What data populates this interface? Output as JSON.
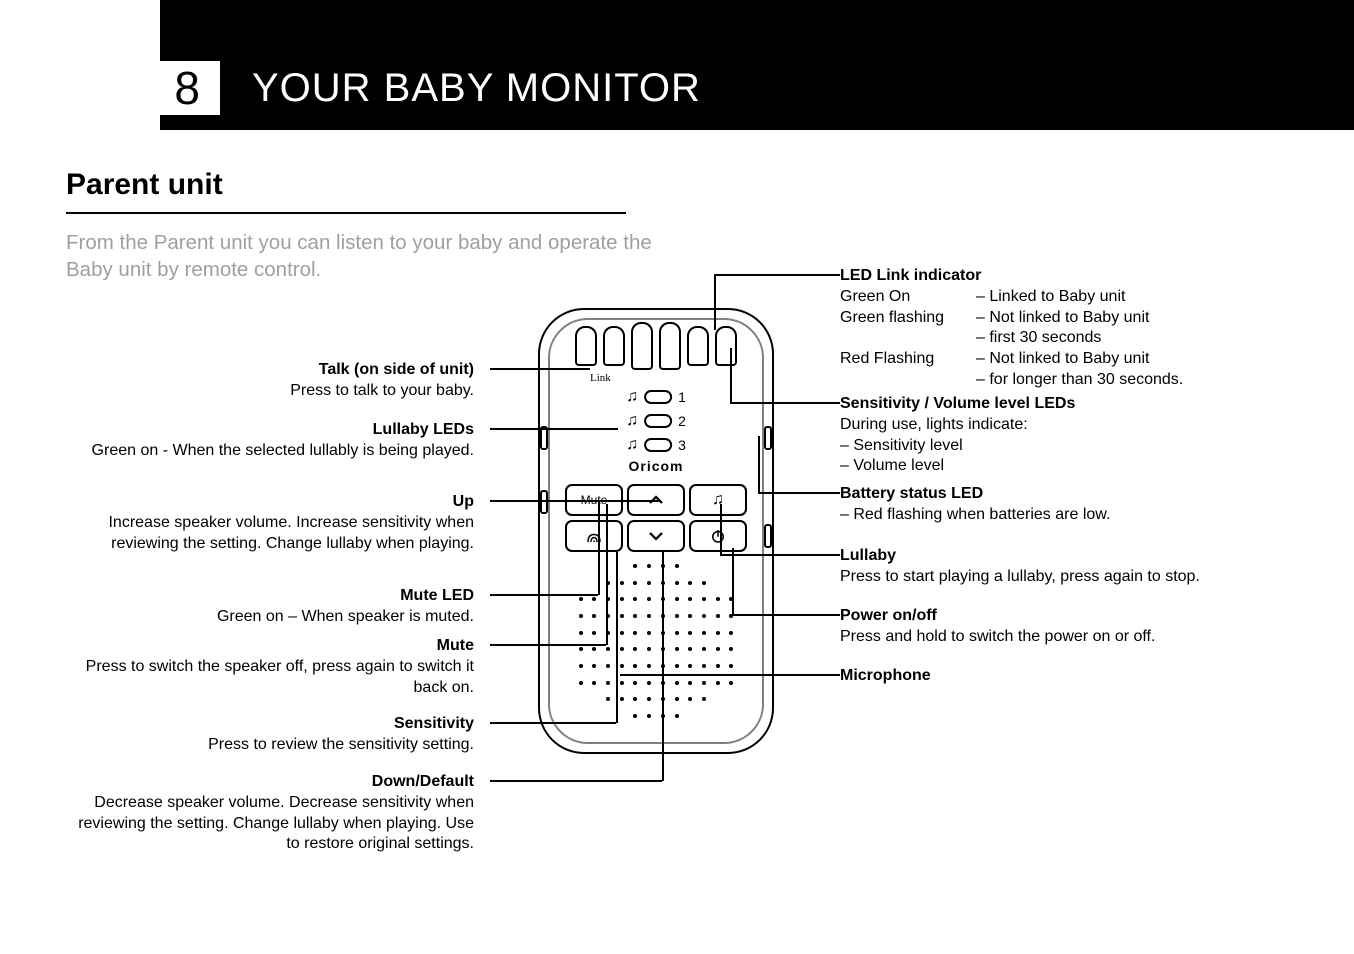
{
  "header": {
    "page_number": "8",
    "title": "YOUR BABY MONITOR"
  },
  "section_heading": "Parent unit",
  "intro_text": "From the Parent unit you can listen to your baby and operate the Baby unit by remote control.",
  "device": {
    "link_label": "Link",
    "brand": "Oricom",
    "lullaby_numbers": [
      "1",
      "2",
      "3"
    ],
    "mute_button_label": "Mute"
  },
  "left_callouts": {
    "talk": {
      "title": "Talk (on side of unit)",
      "desc": "Press to talk to your baby."
    },
    "lullaby_leds": {
      "title": "Lullaby LEDs",
      "desc": "Green on - When the selected lullably is being played."
    },
    "up": {
      "title": "Up",
      "desc": "Increase speaker volume. Increase sensitivity when reviewing the setting. Change lullaby when playing."
    },
    "mute_led": {
      "title": "Mute LED",
      "desc": "Green on – When speaker is muted."
    },
    "mute": {
      "title": "Mute",
      "desc": "Press to switch the speaker off, press again to switch it back on."
    },
    "sensitivity": {
      "title": "Sensitivity",
      "desc": "Press to review the sensitivity setting."
    },
    "down": {
      "title": "Down/Default",
      "desc": "Decrease speaker volume. Decrease sensitivity when reviewing the setting. Change lullaby when playing. Use to restore original settings."
    }
  },
  "right_callouts": {
    "led_link": {
      "title": "LED Link indicator",
      "rows": [
        [
          "Green On",
          "– Linked to Baby unit"
        ],
        [
          "Green flashing",
          "– Not linked to Baby unit"
        ],
        [
          "",
          "– first 30 seconds"
        ],
        [
          "Red Flashing",
          "– Not linked to Baby unit"
        ],
        [
          "",
          "– for longer than 30 seconds."
        ]
      ]
    },
    "sens_vol": {
      "title": "Sensitivity / Volume level LEDs",
      "lines": [
        "During use, lights indicate:",
        "– Sensitivity level",
        "– Volume level"
      ]
    },
    "battery": {
      "title": "Battery status LED",
      "lines": [
        "– Red flashing when batteries are low."
      ]
    },
    "lullaby": {
      "title": "Lullaby",
      "lines": [
        "Press to start playing a lullaby, press again to stop."
      ]
    },
    "power": {
      "title": "Power on/off",
      "lines": [
        "Press and hold to switch the power on or off."
      ]
    },
    "microphone": {
      "title": "Microphone"
    }
  }
}
